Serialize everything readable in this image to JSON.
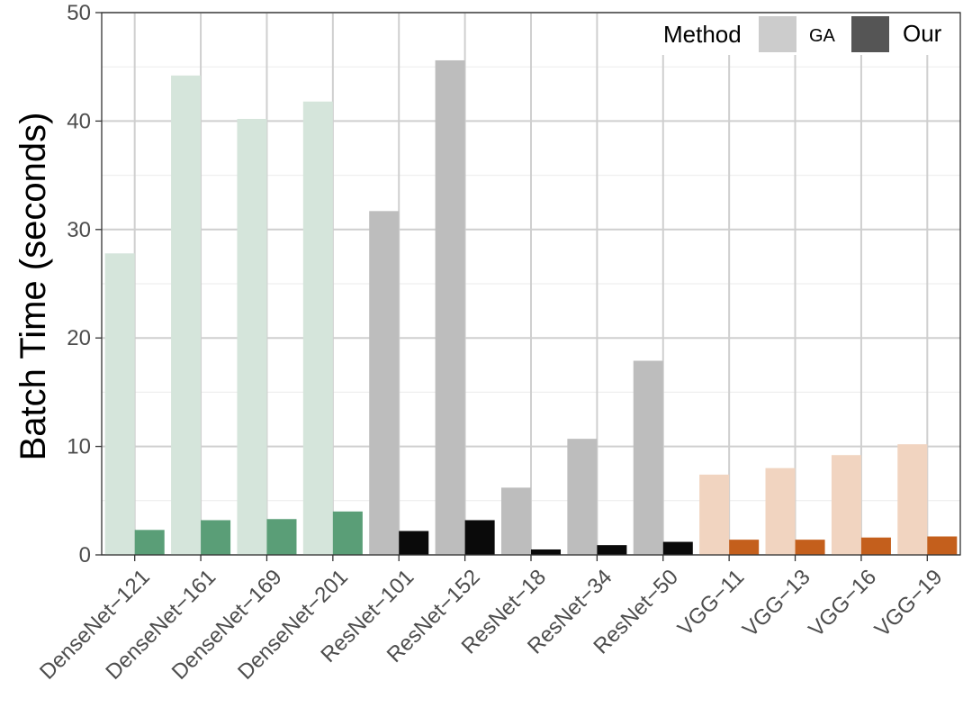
{
  "chart_data": {
    "type": "bar",
    "title": "",
    "xlabel": "",
    "ylabel": "Batch Time (seconds)",
    "ylim": [
      0,
      50
    ],
    "yticks": [
      0,
      10,
      20,
      30,
      40,
      50
    ],
    "grid": true,
    "legend": {
      "title": "Method",
      "position": "top-right",
      "entries": [
        {
          "label": "GA",
          "swatch_color": "#cccccc"
        },
        {
          "label": "Our",
          "swatch_color": "#555555"
        }
      ]
    },
    "categories": [
      "DenseNet−121",
      "DenseNet−161",
      "DenseNet−169",
      "DenseNet−201",
      "ResNet−101",
      "ResNet−152",
      "ResNet−18",
      "ResNet−34",
      "ResNet−50",
      "VGG−11",
      "VGG−13",
      "VGG−16",
      "VGG−19"
    ],
    "family": [
      "DenseNet",
      "DenseNet",
      "DenseNet",
      "DenseNet",
      "ResNet",
      "ResNet",
      "ResNet",
      "ResNet",
      "ResNet",
      "VGG",
      "VGG",
      "VGG",
      "VGG"
    ],
    "family_colors": {
      "DenseNet": {
        "GA": "#d5e5db",
        "Our": "#5a9e77"
      },
      "ResNet": {
        "GA": "#bdbdbd",
        "Our": "#0a0a0a"
      },
      "VGG": {
        "GA": "#f1d4c0",
        "Our": "#c45f1c"
      }
    },
    "series": [
      {
        "name": "GA",
        "values": [
          27.8,
          44.2,
          40.2,
          41.8,
          31.7,
          45.6,
          6.2,
          10.7,
          17.9,
          7.4,
          8.0,
          9.2,
          10.2
        ]
      },
      {
        "name": "Our",
        "values": [
          2.3,
          3.2,
          3.3,
          4.0,
          2.2,
          3.2,
          0.5,
          0.9,
          1.2,
          1.4,
          1.4,
          1.6,
          1.7
        ]
      }
    ]
  }
}
